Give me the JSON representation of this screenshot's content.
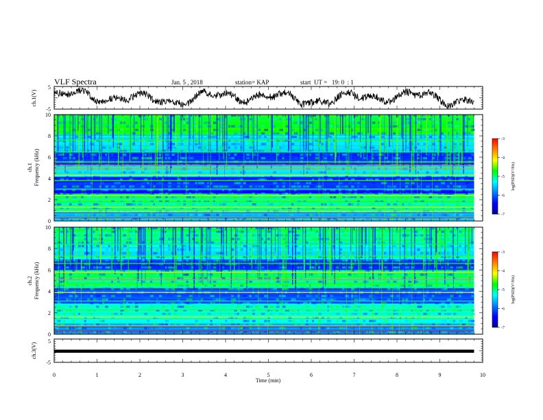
{
  "header": {
    "title": "VLF Spectra",
    "date": "Jan. 5 , 2018",
    "station": "station= KAP",
    "start": "start  UT =   19: 0  : 1"
  },
  "colors": {
    "scale": [
      "#000096",
      "#0000ff",
      "#0080ff",
      "#00ffff",
      "#00ff00",
      "#ffff00",
      "#ff8000",
      "#ff0000"
    ]
  },
  "chart_data": [
    {
      "type": "line",
      "name": "ch1-waveform",
      "ylabel": "ch.1(V)",
      "ylim": [
        -5,
        5
      ],
      "yticks": [
        "5",
        "-5"
      ],
      "xlim": [
        0,
        10
      ],
      "x_end": 9.8,
      "stroke": "#000000"
    },
    {
      "type": "heatmap",
      "name": "ch1-spectrogram",
      "ylabel": "ch.1\nFrequency (kHz)",
      "ylim": [
        0,
        10
      ],
      "yticks": [
        "0",
        "2",
        "4",
        "6",
        "8",
        "10"
      ],
      "xlim": [
        0,
        10
      ],
      "x_end": 9.8,
      "colorbar": {
        "label": "log(PSD)(V²/Hz)",
        "range": [
          -7,
          -3
        ],
        "ticks": [
          "-3",
          "-4",
          "-5",
          "-6",
          "-7"
        ]
      }
    },
    {
      "type": "heatmap",
      "name": "ch2-spectrogram",
      "ylabel": "ch.2\nFrequency (kHz)",
      "ylim": [
        0,
        10
      ],
      "yticks": [
        "0",
        "2",
        "4",
        "6",
        "8",
        "10"
      ],
      "xlim": [
        0,
        10
      ],
      "x_end": 9.8,
      "colorbar": {
        "label": "log(PSD)(V²/Hz)",
        "range": [
          -7,
          -3
        ],
        "ticks": [
          "-3",
          "-4",
          "-5",
          "-6",
          "-7"
        ]
      }
    },
    {
      "type": "line",
      "name": "ch3-waveform",
      "ylabel": "ch.3(V)",
      "ylim": [
        -5,
        5
      ],
      "yticks": [
        "5",
        "-5"
      ],
      "xlim": [
        0,
        10
      ],
      "x_end": 9.8,
      "constant_value": -0.2,
      "xlabel": "Time (min)",
      "xticks": [
        "0",
        "1",
        "2",
        "3",
        "4",
        "5",
        "6",
        "7",
        "8",
        "9",
        "10"
      ]
    }
  ]
}
